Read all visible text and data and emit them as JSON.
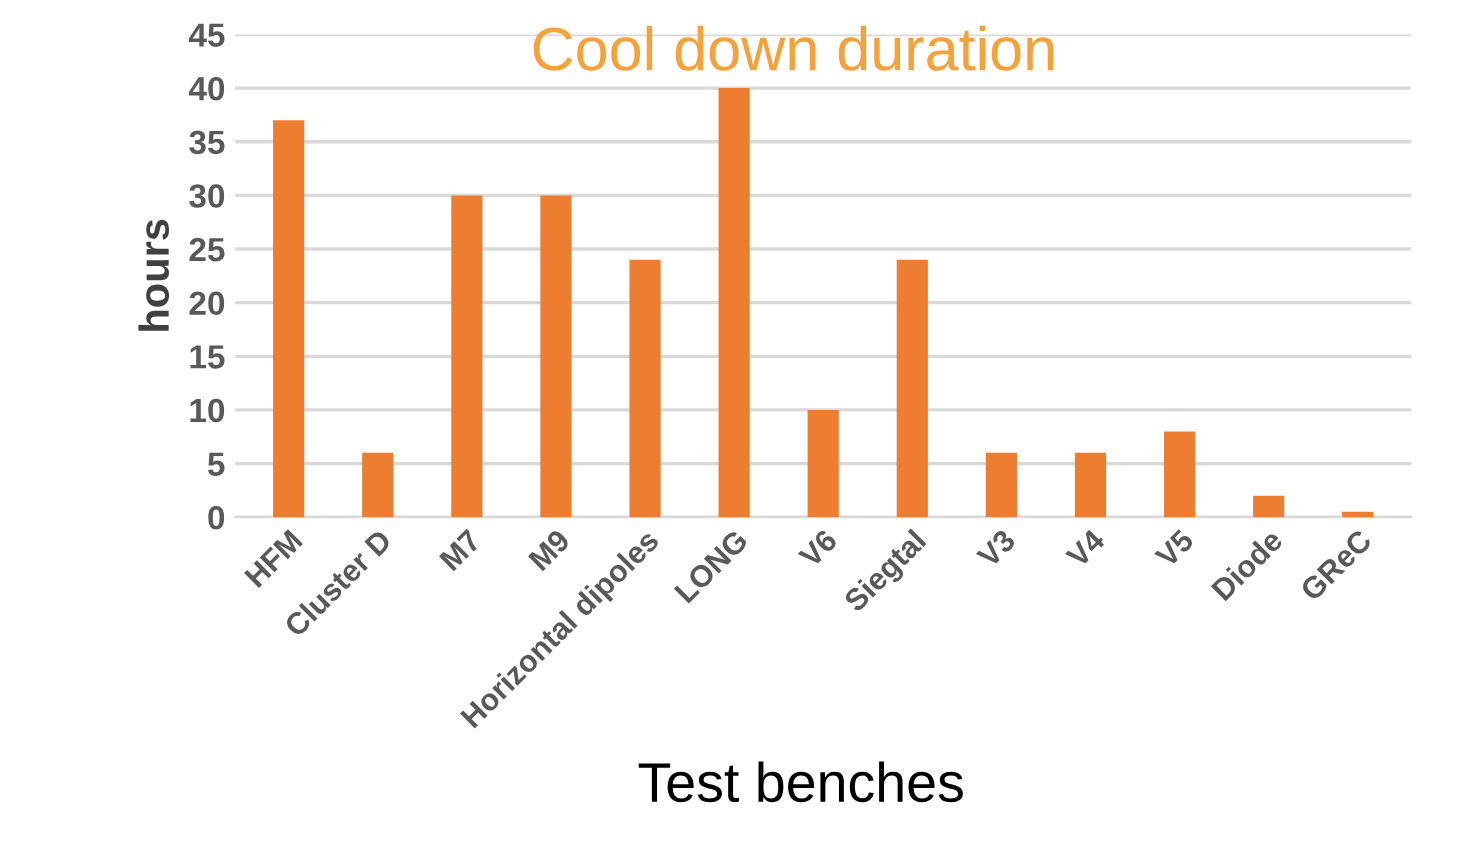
{
  "chart_data": {
    "type": "bar",
    "title": "Cool down duration",
    "xlabel": "Test benches",
    "ylabel": "hours",
    "categories": [
      "HFM",
      "Cluster D",
      "M7",
      "M9",
      "Horizontal dipoles",
      "LONG",
      "V6",
      "Siegtal",
      "V3",
      "V4",
      "V5",
      "Diode",
      "GReC"
    ],
    "series": [
      {
        "color": "#ed7d31",
        "values": [
          37,
          6,
          30,
          30,
          24,
          40,
          10,
          24,
          6,
          6,
          8,
          2,
          0.5
        ]
      }
    ],
    "ylim": [
      0,
      45
    ],
    "yticks": [
      0,
      5,
      10,
      15,
      20,
      25,
      30,
      35,
      40,
      45
    ],
    "grid": "y",
    "legend": false
  }
}
